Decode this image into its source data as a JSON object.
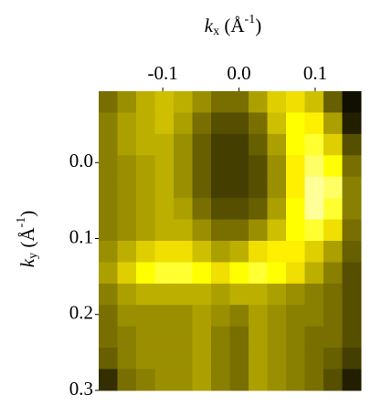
{
  "chart_data": {
    "type": "heatmap",
    "xlabel": [
      "k",
      "x",
      " (Å",
      "-1",
      ")"
    ],
    "ylabel": [
      "k",
      "y",
      " (Å",
      "-1",
      ")"
    ],
    "xlim": [
      -0.184,
      0.16
    ],
    "ylim": [
      -0.094,
      0.3
    ],
    "xticks": [
      -0.1,
      {
        "value": 0,
        "label": "0.0"
      },
      0.1
    ],
    "yticks": [
      {
        "value": 0,
        "label": "0.0"
      },
      0.1,
      0.2,
      0.3
    ],
    "y_reversed": true,
    "z": [
      [
        0.35,
        0.45,
        0.55,
        0.6,
        0.55,
        0.45,
        0.35,
        0.35,
        0.5,
        0.65,
        0.7,
        0.6,
        0.3,
        0.05
      ],
      [
        0.4,
        0.5,
        0.55,
        0.6,
        0.5,
        0.35,
        0.25,
        0.25,
        0.35,
        0.6,
        0.8,
        0.75,
        0.5,
        0.1
      ],
      [
        0.4,
        0.5,
        0.55,
        0.55,
        0.45,
        0.3,
        0.2,
        0.2,
        0.3,
        0.5,
        0.8,
        0.85,
        0.65,
        0.25
      ],
      [
        0.4,
        0.45,
        0.5,
        0.55,
        0.45,
        0.3,
        0.2,
        0.2,
        0.25,
        0.45,
        0.75,
        0.9,
        0.8,
        0.35
      ],
      [
        0.4,
        0.45,
        0.5,
        0.55,
        0.45,
        0.3,
        0.2,
        0.2,
        0.25,
        0.45,
        0.75,
        0.95,
        0.9,
        0.4
      ],
      [
        0.4,
        0.45,
        0.5,
        0.55,
        0.5,
        0.35,
        0.25,
        0.25,
        0.3,
        0.5,
        0.8,
        0.95,
        0.85,
        0.4
      ],
      [
        0.4,
        0.45,
        0.5,
        0.55,
        0.55,
        0.45,
        0.35,
        0.35,
        0.45,
        0.6,
        0.8,
        0.85,
        0.7,
        0.35
      ],
      [
        0.45,
        0.55,
        0.65,
        0.7,
        0.7,
        0.6,
        0.5,
        0.55,
        0.7,
        0.75,
        0.75,
        0.65,
        0.5,
        0.3
      ],
      [
        0.5,
        0.65,
        0.8,
        0.85,
        0.85,
        0.8,
        0.7,
        0.8,
        0.85,
        0.8,
        0.7,
        0.55,
        0.4,
        0.25
      ],
      [
        0.4,
        0.5,
        0.55,
        0.55,
        0.55,
        0.55,
        0.5,
        0.55,
        0.55,
        0.5,
        0.45,
        0.4,
        0.35,
        0.25
      ],
      [
        0.35,
        0.45,
        0.45,
        0.45,
        0.45,
        0.5,
        0.45,
        0.4,
        0.5,
        0.45,
        0.4,
        0.4,
        0.35,
        0.25
      ],
      [
        0.35,
        0.4,
        0.45,
        0.45,
        0.45,
        0.5,
        0.4,
        0.35,
        0.5,
        0.45,
        0.4,
        0.35,
        0.35,
        0.25
      ],
      [
        0.3,
        0.4,
        0.45,
        0.45,
        0.45,
        0.5,
        0.4,
        0.35,
        0.5,
        0.45,
        0.4,
        0.35,
        0.3,
        0.2
      ],
      [
        0.15,
        0.35,
        0.4,
        0.45,
        0.45,
        0.5,
        0.4,
        0.35,
        0.5,
        0.45,
        0.4,
        0.35,
        0.25,
        0.1
      ]
    ]
  }
}
